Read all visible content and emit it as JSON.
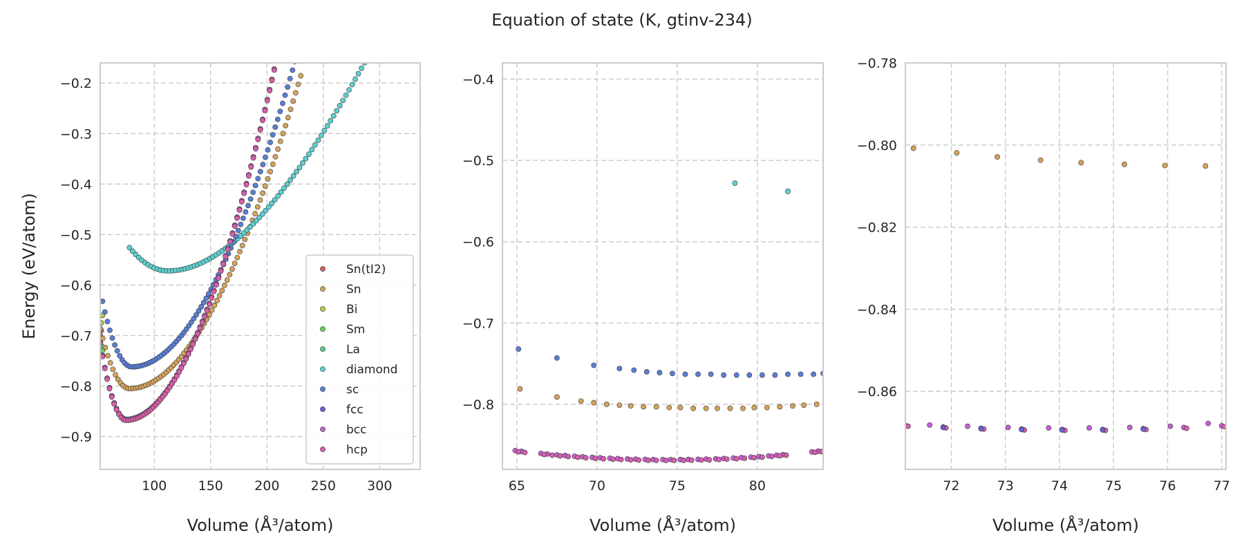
{
  "figure": {
    "title": "Equation of state (K, gtinv-234)"
  },
  "colors": {
    "Sn(tI2)": "#d65f5f",
    "Sn": "#d6a35c",
    "Bi": "#b8c94a",
    "Sm": "#62d15a",
    "La": "#4fcf87",
    "diamond": "#5fcfcf",
    "sc": "#5a7fd6",
    "fcc": "#6a5fd6",
    "bcc": "#c65fd6",
    "hcp": "#d65fa8"
  },
  "legend": {
    "placement": "lower-right",
    "entries": [
      "Sn(tI2)",
      "Sn",
      "Bi",
      "Sm",
      "La",
      "diamond",
      "sc",
      "fcc",
      "bcc",
      "hcp"
    ]
  },
  "chart_data": [
    {
      "type": "scatter",
      "xlabel": "Volume (Å³/atom)",
      "ylabel": "Energy (eV/atom)",
      "xlim": [
        52,
        336
      ],
      "ylim": [
        -0.965,
        -0.16
      ],
      "xticks": [
        "100",
        "150",
        "200",
        "250",
        "300"
      ],
      "yticks": [
        "−0.2",
        "−0.3",
        "−0.4",
        "−0.5",
        "−0.6",
        "−0.7",
        "−0.8",
        "−0.9"
      ],
      "grid": true,
      "series": [
        {
          "name": "Sn(tI2)",
          "x": [
            52,
            53
          ],
          "y": [
            -0.7,
            -0.69
          ]
        },
        {
          "name": "Sn",
          "model": {
            "v0": 78,
            "e0": -0.805,
            "a": 0.00011,
            "b": 0.33,
            "xmin": 52,
            "xmax": 230,
            "n": 80
          }
        },
        {
          "name": "Bi",
          "x": [
            53,
            54
          ],
          "y": [
            -0.675,
            -0.66
          ]
        },
        {
          "name": "Sm",
          "x": [
            52,
            54
          ],
          "y": [
            -0.74,
            -0.73
          ]
        },
        {
          "name": "La",
          "x": [
            53
          ],
          "y": [
            -0.72
          ]
        },
        {
          "name": "diamond",
          "model": {
            "v0": 112,
            "e0": -0.572,
            "a": 2.5e-05,
            "b": 0.33,
            "xmin": 78,
            "xmax": 336,
            "n": 95
          }
        },
        {
          "name": "sc",
          "model": {
            "v0": 80,
            "e0": -0.762,
            "a": 0.00012,
            "b": 0.34,
            "xmin": 54,
            "xmax": 238,
            "n": 85
          }
        },
        {
          "name": "fcc",
          "model": {
            "v0": 75,
            "e0": -0.866,
            "a": 0.00018,
            "b": 0.4,
            "xmin": 52,
            "xmax": 225,
            "n": 85
          }
        },
        {
          "name": "bcc",
          "model": {
            "v0": 75,
            "e0": -0.866,
            "a": 0.00018,
            "b": 0.4,
            "xmin": 52,
            "xmax": 225,
            "n": 85
          }
        },
        {
          "name": "hcp",
          "model": {
            "v0": 75,
            "e0": -0.868,
            "a": 0.00018,
            "b": 0.4,
            "xmin": 52,
            "xmax": 225,
            "n": 85
          }
        }
      ]
    },
    {
      "type": "scatter",
      "xlabel": "Volume (Å³/atom)",
      "ylabel": "",
      "xlim": [
        64.1,
        84.1
      ],
      "ylim": [
        -0.88,
        -0.38
      ],
      "xticks": [
        "65",
        "70",
        "75",
        "80"
      ],
      "yticks": [
        "−0.4",
        "−0.5",
        "−0.6",
        "−0.7",
        "−0.8"
      ],
      "grid": true,
      "series": [
        {
          "name": "diamond",
          "x": [
            78.6,
            81.9
          ],
          "y": [
            -0.528,
            -0.538
          ]
        },
        {
          "name": "sc",
          "x": [
            65.1,
            67.5,
            69.8,
            71.4,
            72.3,
            73.1,
            73.9,
            74.7,
            75.5,
            76.3,
            77.1,
            77.9,
            78.7,
            79.5,
            80.3,
            81.1,
            81.9,
            82.7,
            83.5,
            84.1
          ],
          "y": [
            -0.732,
            -0.743,
            -0.752,
            -0.756,
            -0.758,
            -0.76,
            -0.761,
            -0.762,
            -0.763,
            -0.763,
            -0.763,
            -0.764,
            -0.764,
            -0.764,
            -0.764,
            -0.764,
            -0.763,
            -0.763,
            -0.763,
            -0.762
          ]
        },
        {
          "name": "Sn",
          "x": [
            65.2,
            67.5,
            69.0,
            69.8,
            70.6,
            71.4,
            72.1,
            72.9,
            73.7,
            74.5,
            75.2,
            76.0,
            76.8,
            77.5,
            78.3,
            79.1,
            79.8,
            80.6,
            81.4,
            82.2,
            82.9,
            83.7
          ],
          "y": [
            -0.781,
            -0.791,
            -0.796,
            -0.798,
            -0.8,
            -0.801,
            -0.802,
            -0.803,
            -0.803,
            -0.804,
            -0.804,
            -0.805,
            -0.805,
            -0.805,
            -0.805,
            -0.805,
            -0.804,
            -0.804,
            -0.803,
            -0.802,
            -0.801,
            -0.8
          ]
        },
        {
          "name": "bcc",
          "model": {
            "xs": [
              64.9,
              65.3,
              66.5,
              66.9,
              67.5,
              68.0,
              68.6,
              69.1,
              69.7,
              70.2,
              70.8,
              71.3,
              71.9,
              72.4,
              73.0,
              73.5,
              74.1,
              74.6,
              75.2,
              75.7,
              76.3,
              76.8,
              77.4,
              77.9,
              78.5,
              79.0,
              79.6,
              80.1,
              80.7,
              81.2,
              81.6,
              83.4,
              83.8
            ],
            "ycenter": 74.5,
            "e0": -0.868,
            "a": 0.00012
          }
        },
        {
          "name": "hcp",
          "model": {
            "xs": [
              65.1,
              65.5,
              66.7,
              67.2,
              67.7,
              68.2,
              68.8,
              69.3,
              69.9,
              70.4,
              71.0,
              71.5,
              72.1,
              72.6,
              73.2,
              73.7,
              74.3,
              74.8,
              75.4,
              75.9,
              76.5,
              77.0,
              77.6,
              78.1,
              78.7,
              79.2,
              79.8,
              80.3,
              80.9,
              81.4,
              81.8,
              83.6,
              84.0
            ],
            "ycenter": 74.5,
            "e0": -0.869,
            "a": 0.00012
          }
        }
      ]
    },
    {
      "type": "scatter",
      "xlabel": "Volume (Å³/atom)",
      "ylabel": "",
      "xlim": [
        71.15,
        77.08
      ],
      "ylim": [
        -0.879,
        -0.78
      ],
      "xticks": [
        "72",
        "73",
        "74",
        "75",
        "76",
        "77"
      ],
      "yticks": [
        "−0.78",
        "−0.80",
        "−0.82",
        "−0.84",
        "−0.86"
      ],
      "grid": true,
      "series": [
        {
          "name": "Sn",
          "x": [
            71.3,
            72.1,
            72.85,
            73.65,
            74.4,
            75.2,
            75.95,
            76.7
          ],
          "y": [
            -0.8008,
            -0.8019,
            -0.8029,
            -0.8037,
            -0.8043,
            -0.8047,
            -0.805,
            -0.8051
          ]
        },
        {
          "name": "bcc",
          "x": [
            71.15,
            71.85,
            72.55,
            73.3,
            74.05,
            74.8,
            75.55,
            76.3,
            77.0
          ],
          "y": [
            -0.8683,
            -0.8687,
            -0.869,
            -0.8692,
            -0.8693,
            -0.8693,
            -0.8691,
            -0.8688,
            -0.8684
          ]
        },
        {
          "name": "hcp",
          "x": [
            71.2,
            71.9,
            72.6,
            73.35,
            74.1,
            74.85,
            75.6,
            76.35,
            77.05
          ],
          "y": [
            -0.8685,
            -0.8689,
            -0.8692,
            -0.8694,
            -0.8695,
            -0.8695,
            -0.8693,
            -0.869,
            -0.8686
          ]
        },
        {
          "name": "fcc",
          "x": [
            71.85,
            72.55,
            73.3,
            74.05,
            74.8,
            75.55
          ],
          "y": [
            -0.8688,
            -0.8691,
            -0.8693,
            -0.8694,
            -0.8694,
            -0.8692
          ]
        },
        {
          "name": "bcc",
          "x": [
            71.6,
            72.3,
            73.05,
            73.8,
            74.55,
            75.3,
            76.05,
            76.75
          ],
          "y": [
            -0.8682,
            -0.8685,
            -0.8688,
            -0.8689,
            -0.8689,
            -0.8688,
            -0.8685,
            -0.8678
          ]
        }
      ]
    }
  ]
}
